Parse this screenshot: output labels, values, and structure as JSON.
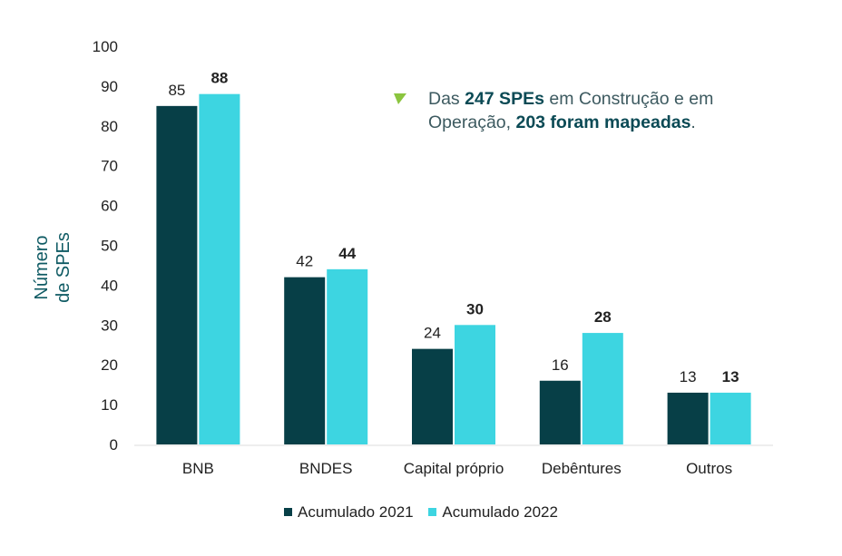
{
  "chart_data": {
    "type": "bar",
    "categories": [
      "BNB",
      "BNDES",
      "Capital próprio",
      "Debêntures",
      "Outros"
    ],
    "series": [
      {
        "name": "Acumulado 2021",
        "values": [
          85,
          42,
          24,
          16,
          13
        ],
        "color": "#073f47"
      },
      {
        "name": "Acumulado 2022",
        "values": [
          88,
          44,
          30,
          28,
          13
        ],
        "color": "#3dd5e1"
      }
    ],
    "ylabel_lines": [
      "Número",
      "de SPEs"
    ],
    "ylim": [
      0,
      100
    ],
    "yticks": [
      0,
      10,
      20,
      30,
      40,
      50,
      60,
      70,
      80,
      90,
      100
    ],
    "grid": false,
    "legend_position": "bottom",
    "data_labels": true
  },
  "annotation": {
    "part1": "Das ",
    "bold1": "247 SPEs",
    "part2": " em Construção e em",
    "part3": "Operação, ",
    "bold2": "203 foram mapeadas",
    "part4": ".",
    "icon": "triangle-bullet-icon",
    "icon_color": "#8bc53f"
  }
}
